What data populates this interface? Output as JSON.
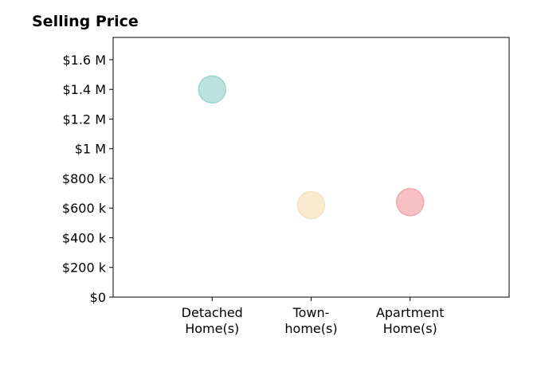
{
  "chart_data": {
    "type": "scatter",
    "title": "Selling Price",
    "xlabel": "",
    "ylabel": "",
    "categories": [
      [
        "Detached",
        "Home(s)"
      ],
      [
        "Town-",
        "home(s)"
      ],
      [
        "Apartment",
        "Home(s)"
      ]
    ],
    "values": [
      1400000,
      620000,
      640000
    ],
    "colors": [
      "#9fd6d0",
      "#f5e3bd",
      "#f3a6ad"
    ],
    "ylim": [
      0,
      1750000
    ],
    "yticks": [
      0,
      200000,
      400000,
      600000,
      800000,
      1000000,
      1200000,
      1400000,
      1600000
    ],
    "ytick_labels": [
      "$0",
      "$200 k",
      "$400 k",
      "$600 k",
      "$800 k",
      "$1 M",
      "$1.2 M",
      "$1.4 M",
      "$1.6 M"
    ],
    "grid": false,
    "legend": "none"
  }
}
